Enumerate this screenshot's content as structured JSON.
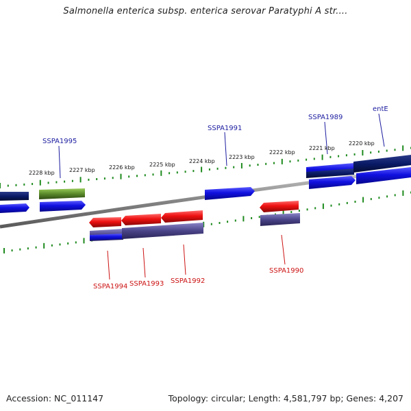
{
  "title": "Salmonella enterica subsp. enterica serovar Paratyphi A str....",
  "footer": {
    "accession": "Accession: NC_011147",
    "summary": "Topology: circular; Length: 4,581,797 bp; Genes: 4,207"
  },
  "scale_labels": [
    "2228 kbp",
    "2227 kbp",
    "2226 kbp",
    "2225 kbp",
    "2224 kbp",
    "2223 kbp",
    "2222 kbp",
    "2221 kbp",
    "2220 kbp"
  ],
  "genes_upper": [
    "SSPA1995",
    "SSPA1991",
    "SSPA1989",
    "entE"
  ],
  "genes_lower": [
    "SSPA1994",
    "SSPA1993",
    "SSPA1992",
    "SSPA1990"
  ],
  "colors": {
    "forward_cds": "#1010e0",
    "reverse_cds": "#ee1111",
    "dark_blue": "#0a1a66",
    "purple_band": "#4a4488",
    "olive": "#5a8a2a",
    "tick_green": "#1e8a1e",
    "backbone": "#888888",
    "label_blue": "#1a1aa0",
    "label_red": "#cc1111"
  }
}
